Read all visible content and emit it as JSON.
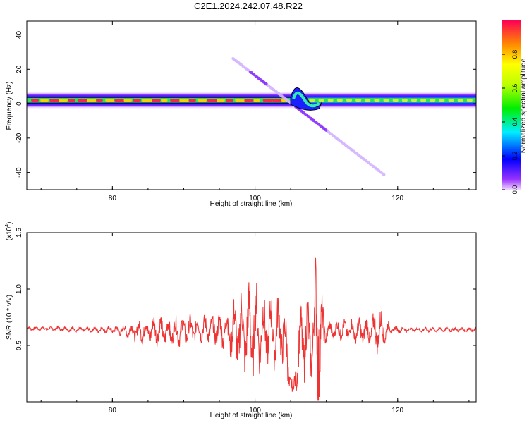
{
  "title": "C2E1.2024.242.07.48.R22",
  "chart_data": [
    {
      "type": "heatmap",
      "xlabel": "Height of straight line (km)",
      "ylabel": "Frequency (Hz)",
      "xlim": [
        68,
        131
      ],
      "ylim": [
        -50,
        48
      ],
      "xticks": [
        80,
        100,
        120
      ],
      "yticks": [
        -40,
        -20,
        0,
        20,
        40
      ],
      "colorbar": {
        "label": "Normalized spectral amplitude",
        "range": [
          0,
          1
        ],
        "ticks": [
          "0.0",
          "0.2",
          "0.4",
          "0.6",
          "0.8"
        ]
      },
      "features": [
        {
          "name": "carrier band",
          "freq_hz": 2,
          "x_from": 68,
          "x_to": 131
        },
        {
          "name": "diagonal streak",
          "x_from": 97,
          "x_to": 118,
          "freq_from_hz": 26,
          "freq_to_hz": -41
        },
        {
          "name": "disturbance",
          "x_from": 105,
          "x_to": 109
        }
      ]
    },
    {
      "type": "line",
      "xlabel": "Height of straight line (km)",
      "ylabel": "SNR (10 * v/v)",
      "y_multiplier": "(x10^4)",
      "xlim": [
        68,
        131
      ],
      "ylim": [
        0,
        1.5
      ],
      "xticks": [
        80,
        100,
        120
      ],
      "yticks": [
        0.5,
        1.0,
        1.5
      ],
      "series_color": "#ee3333",
      "envelope_x": [
        68,
        72,
        76,
        80,
        82,
        84,
        86,
        88,
        90,
        92,
        94,
        96,
        97,
        98,
        99,
        100,
        101,
        102,
        103,
        104,
        104.7,
        105.3,
        106,
        106.5,
        107,
        107.5,
        108,
        108.5,
        108.9,
        109.2,
        109.8,
        110.5,
        112,
        114,
        116,
        117.5,
        119,
        121,
        125,
        128,
        131
      ],
      "envelope_center": [
        0.65,
        0.65,
        0.64,
        0.64,
        0.63,
        0.62,
        0.64,
        0.62,
        0.63,
        0.65,
        0.64,
        0.64,
        0.62,
        0.62,
        0.63,
        0.63,
        0.63,
        0.62,
        0.63,
        0.62,
        0.3,
        0.06,
        0.4,
        0.55,
        0.6,
        0.55,
        0.5,
        0.7,
        0.75,
        0.6,
        0.62,
        0.63,
        0.64,
        0.63,
        0.62,
        0.63,
        0.64,
        0.64,
        0.64,
        0.64,
        0.64
      ],
      "envelope_amplitude": [
        0.015,
        0.02,
        0.02,
        0.03,
        0.06,
        0.1,
        0.13,
        0.13,
        0.13,
        0.12,
        0.12,
        0.18,
        0.28,
        0.35,
        0.4,
        0.42,
        0.32,
        0.3,
        0.32,
        0.28,
        0.25,
        0.06,
        0.25,
        0.35,
        0.4,
        0.35,
        0.3,
        0.6,
        0.85,
        0.4,
        0.12,
        0.08,
        0.09,
        0.1,
        0.13,
        0.2,
        0.04,
        0.02,
        0.02,
        0.02,
        0.02
      ]
    }
  ]
}
